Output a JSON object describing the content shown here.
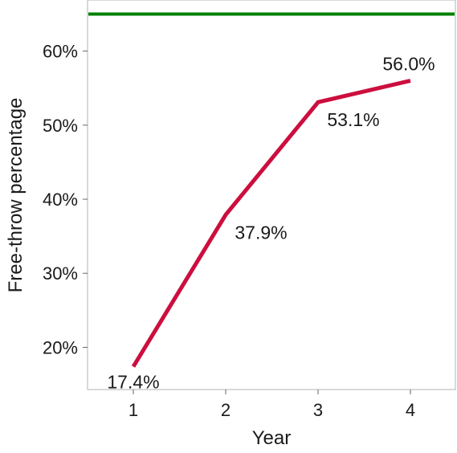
{
  "chart_data": {
    "type": "line",
    "title": "",
    "xlabel": "Year",
    "ylabel": "Free-throw percentage",
    "categories": [
      "1",
      "2",
      "3",
      "4"
    ],
    "series": [
      {
        "values": [
          17.4,
          37.9,
          53.1,
          56.0
        ],
        "labels": [
          "17.4%",
          "37.9%",
          "53.1%",
          "56.0%"
        ],
        "color": "#cc0e3f"
      }
    ],
    "reference_line": {
      "value": 65,
      "color": "#008000"
    },
    "yticks": [
      20,
      30,
      40,
      50,
      60
    ],
    "ytick_labels": [
      "20%",
      "30%",
      "40%",
      "50%",
      "60%"
    ],
    "ylim": [
      14.3,
      66.9
    ],
    "grid": false,
    "legend": "none"
  }
}
